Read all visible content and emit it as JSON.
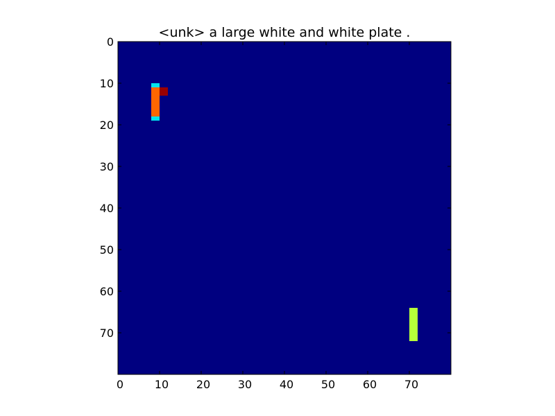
{
  "chart_data": {
    "type": "heatmap",
    "title": "<unk> a large white and white plate .",
    "xlabel": "",
    "ylabel": "",
    "colormap": "jet",
    "background_color": "#000080",
    "grid": false,
    "xlim": [
      0,
      80
    ],
    "ylim": [
      80,
      0
    ],
    "x_ticks": [
      0,
      10,
      20,
      30,
      40,
      50,
      60,
      70
    ],
    "y_ticks": [
      0,
      10,
      20,
      30,
      40,
      50,
      60,
      70
    ],
    "regions": [
      {
        "x0": 8,
        "x1": 10,
        "y0": 10,
        "y1": 19,
        "color": "#00e5ee",
        "label": "cyan-edge"
      },
      {
        "x0": 8,
        "x1": 10,
        "y0": 11,
        "y1": 18,
        "color": "#ff6600",
        "label": "orange-core"
      },
      {
        "x0": 10,
        "x1": 12,
        "y0": 11,
        "y1": 13,
        "color": "#990000",
        "label": "dark-red-spot"
      },
      {
        "x0": 70,
        "x1": 72,
        "y0": 64,
        "y1": 72,
        "color": "#b6ff3a",
        "label": "yellow-green-bar"
      }
    ]
  }
}
